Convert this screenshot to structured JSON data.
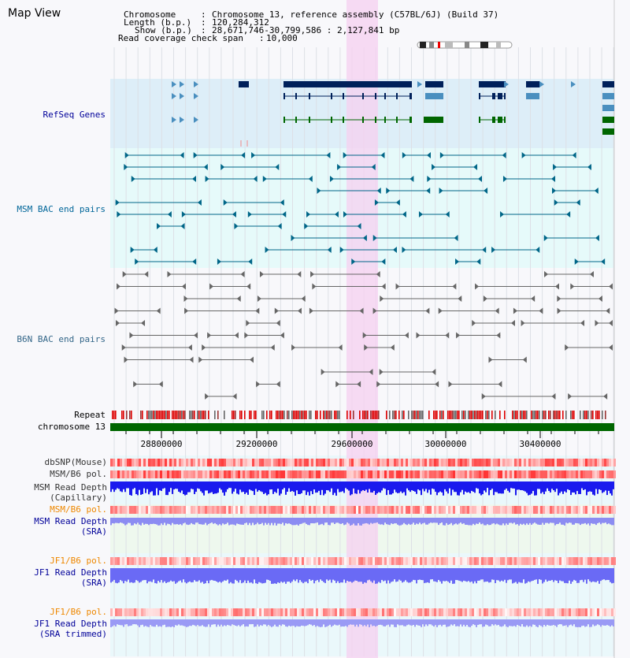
{
  "view_title": "Map View",
  "header": {
    "chromosome_label": "Chromosome",
    "chromosome_value": "Chromosome 13, reference assembly (C57BL/6J) (Build 37)",
    "length_label": "Length (b.p.)",
    "length_value": "120,284,312",
    "show_label": "Show (b.p.)",
    "show_value": "28,671,746-30,799,586 : 2,127,841 bp",
    "coverage_label": "Read coverage check span",
    "coverage_value": "10,000"
  },
  "tracks": {
    "refseq": "RefSeq Genes",
    "msm_bac": "MSM BAC end pairs",
    "b6n_bac": "B6N BAC end pairs",
    "repeat": "Repeat",
    "chromosome": "chromosome 13",
    "dbsnp": "dbSNP(Mouse)",
    "msm_b6_pol_1": "MSM/B6 pol.",
    "msm_read_cap_1": "MSM Read Depth",
    "msm_read_cap_2": "(Capillary)",
    "msm_b6_pol_2": "MSM/B6 pol.",
    "msm_read_sra_1": "MSM Read Depth",
    "msm_read_sra_2": "(SRA)",
    "jf1_b6_pol_1": "JF1/B6 pol.",
    "jf1_read_sra_1": "JF1 Read Depth",
    "jf1_read_sra_2": "(SRA)",
    "jf1_b6_pol_2": "JF1/B6 pol.",
    "jf1_read_trim_1": "JF1 Read Depth",
    "jf1_read_trim_2": "(SRA trimmed)"
  },
  "axis_ticks": [
    "28800000",
    "29200000",
    "29600000",
    "30000000",
    "30400000"
  ],
  "colors": {
    "refseq_bg": "#ddeef8",
    "msm_bg": "#e6fafa",
    "highlight": "#f5d0f0",
    "msm_label": "#006699",
    "refseq_label": "#000099",
    "pol_label": "#ee8800",
    "depth_label": "#000099",
    "gene_dark": "#00205a",
    "gene_mid": "#4a8fbf",
    "gene_green": "#006600",
    "bac_msm": "#006688",
    "bac_b6n": "#666666",
    "chromosome_bar": "#006600"
  }
}
